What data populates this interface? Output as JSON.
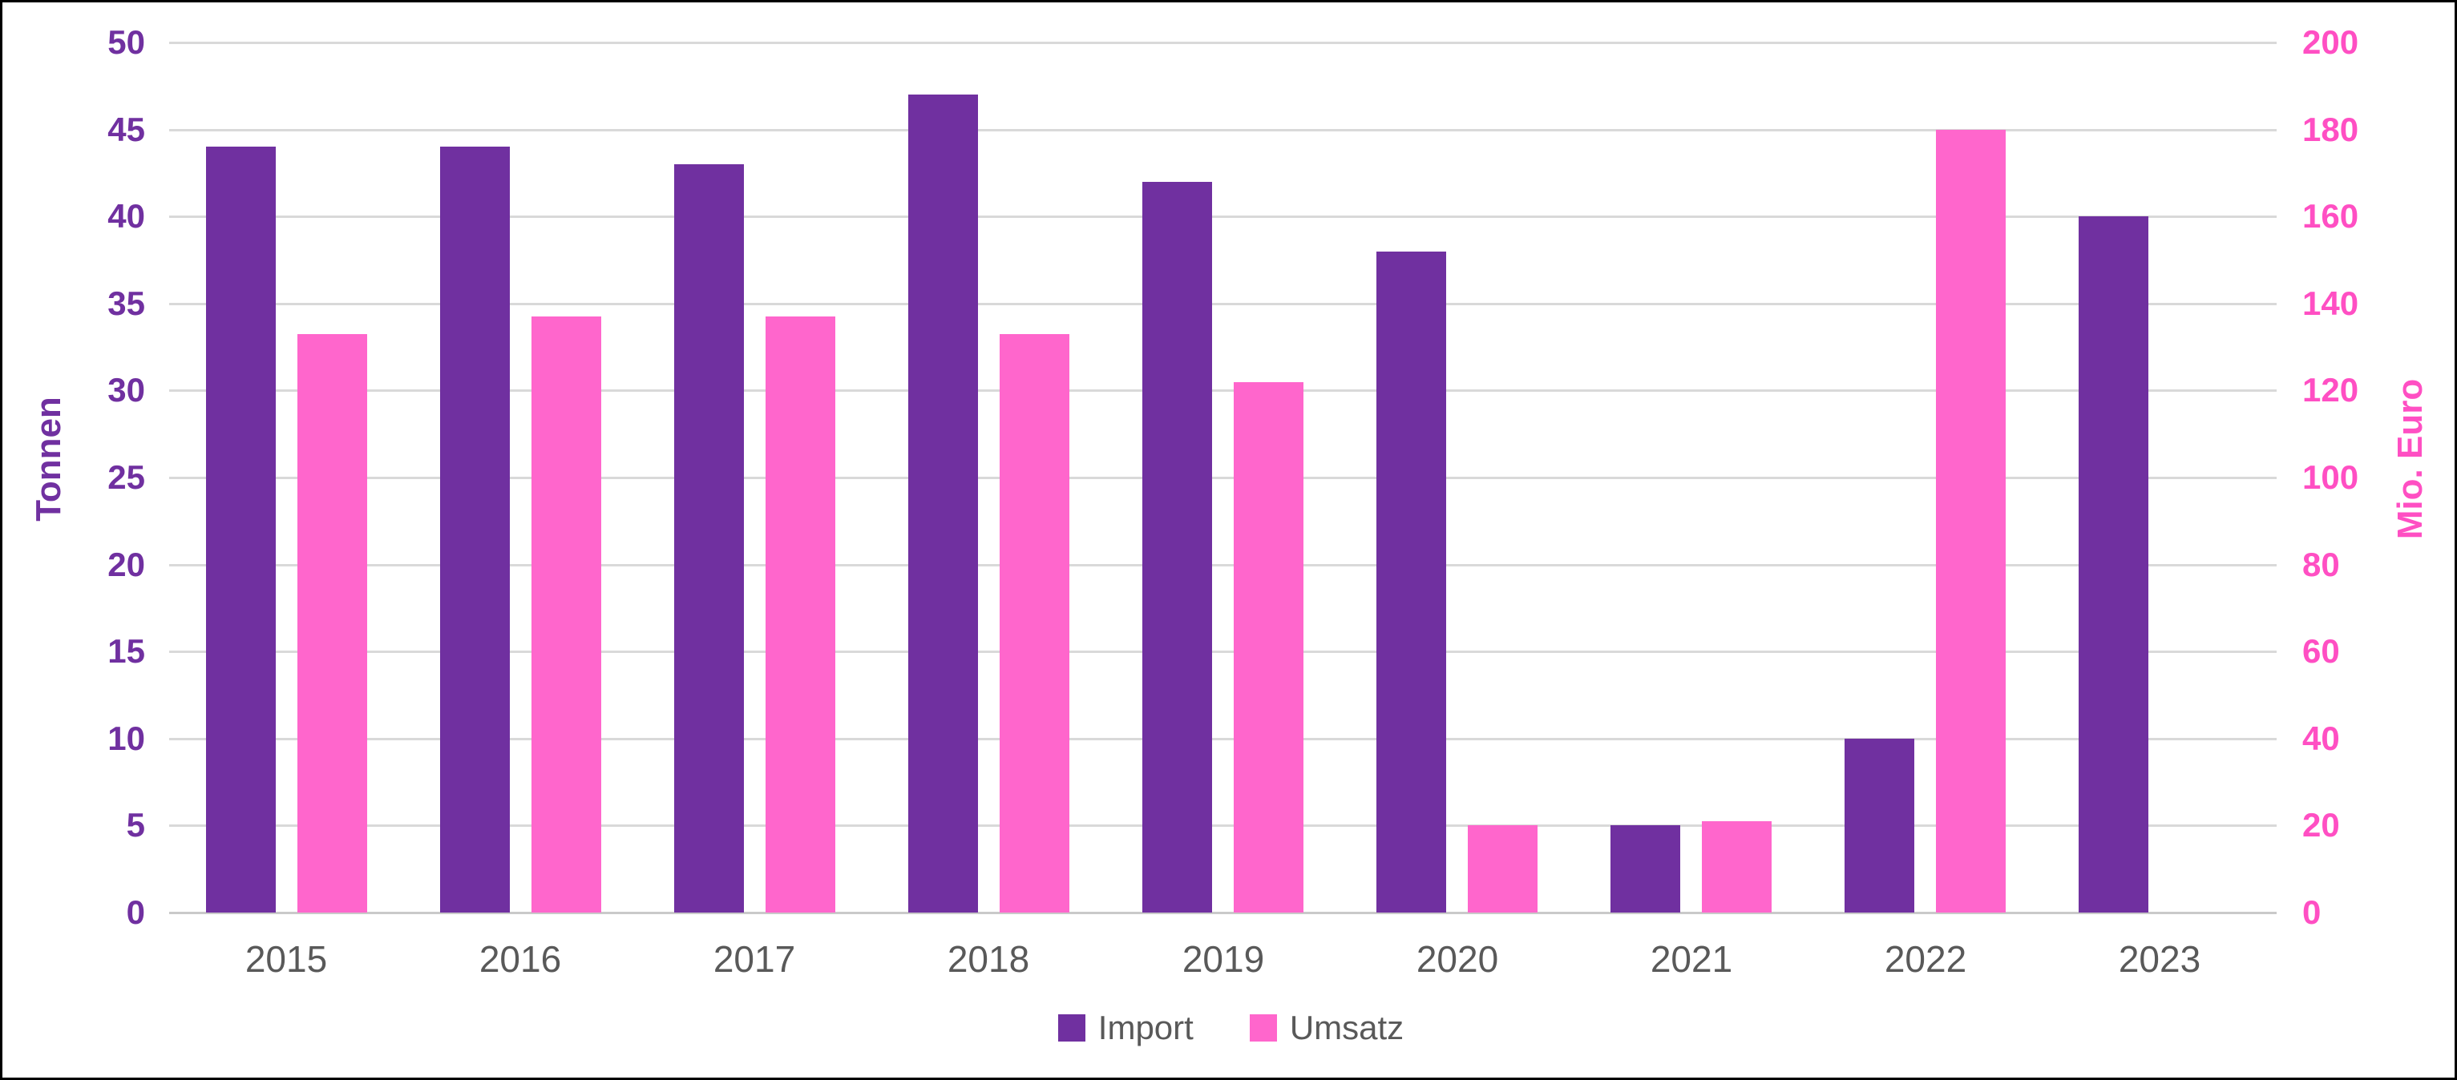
{
  "chart_data": {
    "type": "bar",
    "title": "",
    "categories": [
      "2015",
      "2016",
      "2017",
      "2018",
      "2019",
      "2020",
      "2021",
      "2022",
      "2023"
    ],
    "series": [
      {
        "name": "Import",
        "axis": "left",
        "unit": "Tonnen",
        "color": "#7030A0",
        "values": [
          44,
          44,
          43,
          47,
          42,
          38,
          5,
          10,
          40
        ]
      },
      {
        "name": "Umsatz",
        "axis": "right",
        "unit": "Mio. Euro",
        "color": "#FF66CC",
        "values": [
          133,
          137,
          137,
          133,
          122,
          20,
          21,
          180,
          null
        ]
      }
    ],
    "left_axis": {
      "title": "Tonnen",
      "min": 0,
      "max": 50,
      "step": 5,
      "ticks": [
        "50",
        "45",
        "40",
        "35",
        "30",
        "25",
        "20",
        "15",
        "10",
        "5",
        "0"
      ],
      "label_color": "#7030A0"
    },
    "right_axis": {
      "title": "Mio. Euro",
      "min": 0,
      "max": 200,
      "step": 20,
      "ticks": [
        "200",
        "180",
        "160",
        "140",
        "120",
        "100",
        "80",
        "60",
        "40",
        "20",
        "0"
      ],
      "label_color": "#FF4FC3"
    },
    "x_axis": {
      "label_color": "#595959"
    },
    "legend": {
      "position": "bottom",
      "text_color": "#595959",
      "items": [
        "Import",
        "Umsatz"
      ]
    },
    "grid": true,
    "gridline_color": "#d9d9d9",
    "background_color": "#ffffff",
    "border_color": "#000000"
  }
}
